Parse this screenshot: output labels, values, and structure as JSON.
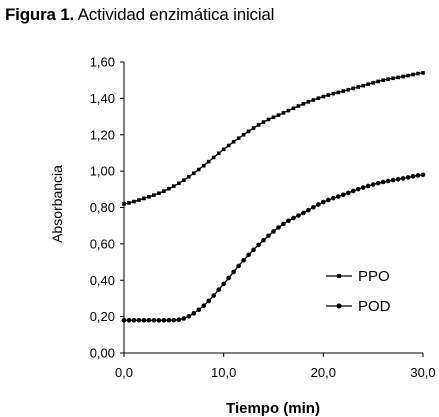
{
  "caption": {
    "lead": "Figura 1.",
    "text": "Actividad enzimática inicial"
  },
  "chart_data": {
    "type": "line",
    "title": "",
    "xlabel": "Tiempo (min)",
    "ylabel": "Absorbancia",
    "xlim": [
      0,
      30
    ],
    "ylim": [
      0,
      1.6
    ],
    "x_ticks": [
      "0,0",
      "10,0",
      "20,0",
      "30,0"
    ],
    "y_ticks": [
      "0,00",
      "0,20",
      "0,40",
      "0,60",
      "0,80",
      "1,00",
      "1,20",
      "1,40",
      "1,60"
    ],
    "grid": false,
    "legend_position": "right",
    "x": [
      0,
      2,
      4,
      6,
      8,
      10,
      12,
      14,
      16,
      18,
      20,
      22,
      24,
      26,
      28,
      30
    ],
    "series": [
      {
        "name": "PPO",
        "marker": "square",
        "values": [
          0.82,
          0.85,
          0.89,
          0.95,
          1.03,
          1.12,
          1.2,
          1.27,
          1.32,
          1.37,
          1.41,
          1.44,
          1.47,
          1.5,
          1.52,
          1.54
        ]
      },
      {
        "name": "POD",
        "marker": "circle",
        "values": [
          0.18,
          0.18,
          0.18,
          0.19,
          0.26,
          0.38,
          0.51,
          0.62,
          0.71,
          0.77,
          0.83,
          0.87,
          0.91,
          0.94,
          0.96,
          0.98
        ]
      }
    ]
  }
}
